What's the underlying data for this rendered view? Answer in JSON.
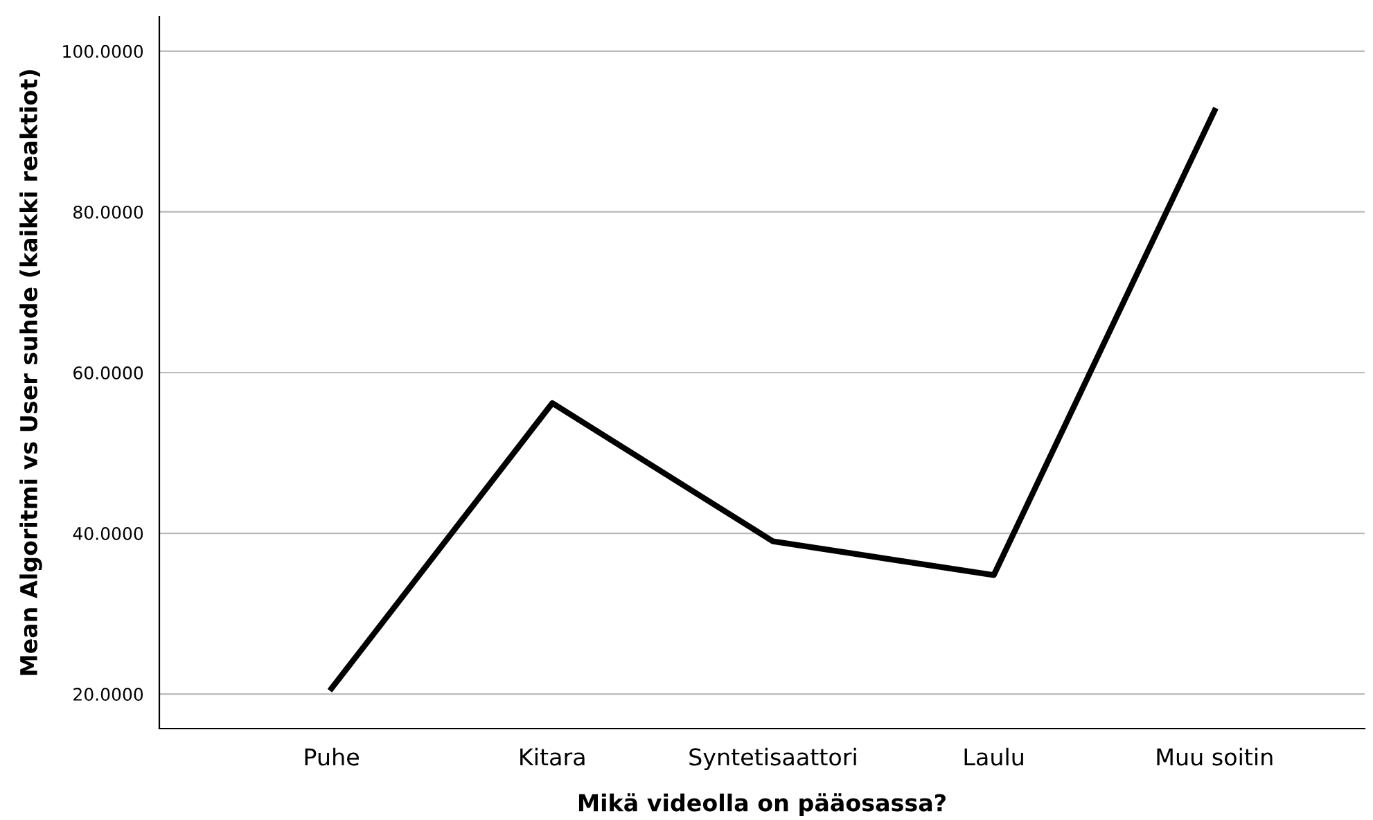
{
  "chart_data": {
    "type": "line",
    "xlabel": "Mikä videolla on pääosassa?",
    "ylabel": "Mean Algoritmi vs User suhde (kaikki reaktiot)",
    "categories": [
      "Puhe",
      "Kitara",
      "Syntetisaattori",
      "Laulu",
      "Muu soitin"
    ],
    "series": [
      {
        "color": "#000000",
        "values": [
          20.7,
          56.2,
          39.0,
          34.8,
          92.6
        ]
      }
    ],
    "ylim": [
      15.7,
      104.3
    ],
    "yticks": [
      {
        "value": 20,
        "label": "20.0000"
      },
      {
        "value": 40,
        "label": "40.0000"
      },
      {
        "value": 60,
        "label": "60.0000"
      },
      {
        "value": 80,
        "label": "80.0000"
      },
      {
        "value": 100,
        "label": "100.0000"
      }
    ],
    "grid": "y",
    "marker": "none",
    "line_style": "solid"
  }
}
